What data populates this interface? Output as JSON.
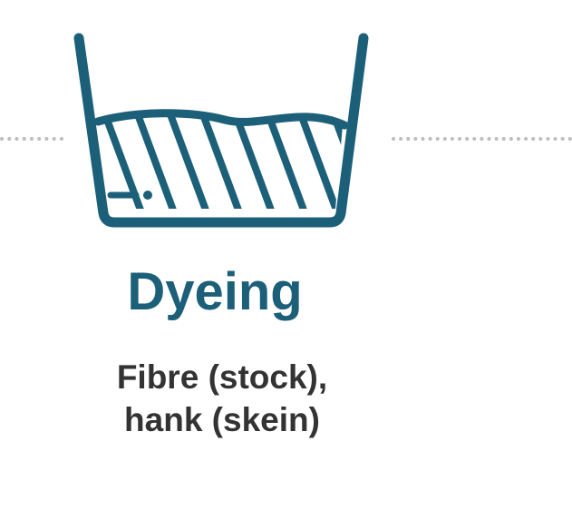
{
  "step": {
    "title": "Dyeing",
    "subtitle_lines": [
      "Fibre (stock),",
      "hank (skein)"
    ],
    "icon": "dye-bath-icon"
  },
  "colors": {
    "accent": "#1b5f78",
    "text": "#333333",
    "connector": "#bdbdbd"
  }
}
